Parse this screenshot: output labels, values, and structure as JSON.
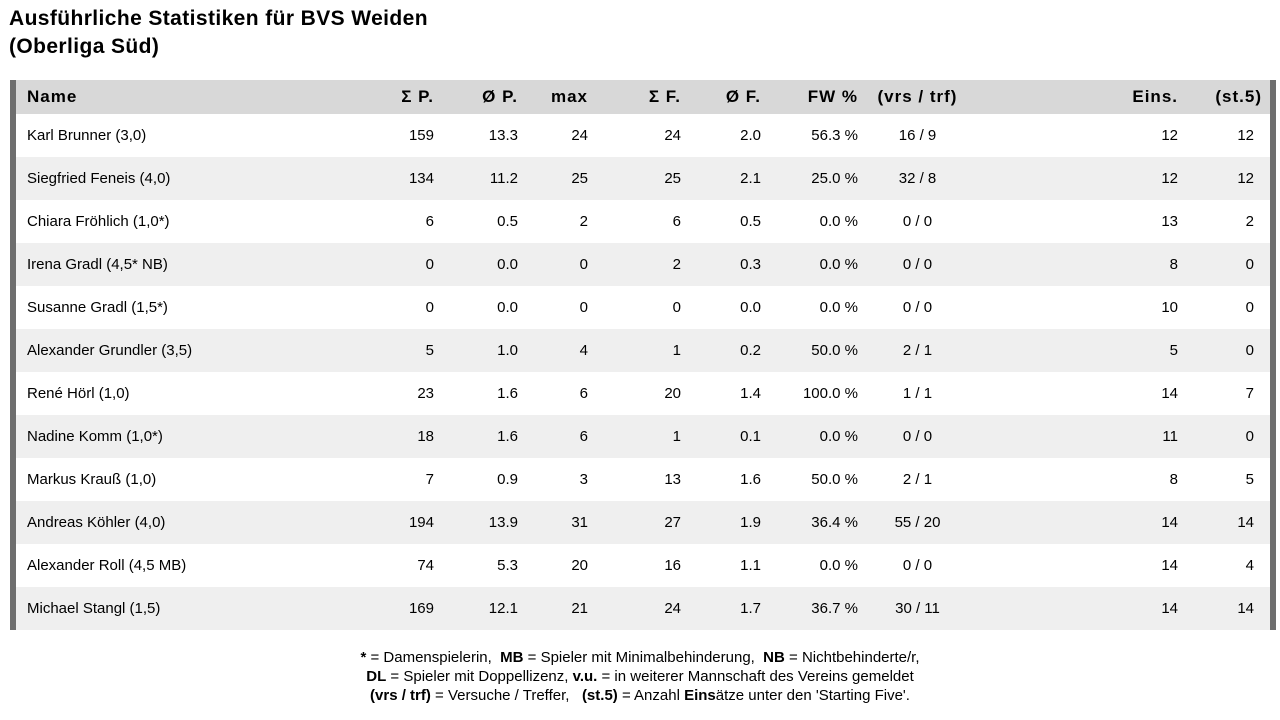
{
  "title": {
    "line1": "Ausführliche Statistiken für BVS Weiden",
    "line2": "(Oberliga Süd)"
  },
  "colors": {
    "header_bg": "#d8d8d8",
    "alt_row_bg": "#efefef",
    "side_bar": "#6e6e6e",
    "text": "#000000",
    "background": "#ffffff"
  },
  "table": {
    "columns": [
      {
        "key": "name",
        "label": "Name"
      },
      {
        "key": "sum_p",
        "label": "Σ P."
      },
      {
        "key": "avg_p",
        "label": "Ø P."
      },
      {
        "key": "max",
        "label": "max"
      },
      {
        "key": "sum_f",
        "label": "Σ F."
      },
      {
        "key": "avg_f",
        "label": "Ø F."
      },
      {
        "key": "fw_pct",
        "label": "FW %"
      },
      {
        "key": "vrs_trf",
        "label": "(vrs / trf)"
      },
      {
        "key": "eins",
        "label": "Eins."
      },
      {
        "key": "st5",
        "label": "(st.5)"
      }
    ],
    "rows": [
      {
        "name": "Karl Brunner (3,0)",
        "sum_p": "159",
        "avg_p": "13.3",
        "max": "24",
        "sum_f": "24",
        "avg_f": "2.0",
        "fw_pct": "56.3 %",
        "vrs_trf": "16 / 9",
        "eins": "12",
        "st5": "12"
      },
      {
        "name": "Siegfried Feneis (4,0)",
        "sum_p": "134",
        "avg_p": "11.2",
        "max": "25",
        "sum_f": "25",
        "avg_f": "2.1",
        "fw_pct": "25.0 %",
        "vrs_trf": "32 / 8",
        "eins": "12",
        "st5": "12"
      },
      {
        "name": "Chiara Fröhlich (1,0*)",
        "sum_p": "6",
        "avg_p": "0.5",
        "max": "2",
        "sum_f": "6",
        "avg_f": "0.5",
        "fw_pct": "0.0 %",
        "vrs_trf": "0 / 0",
        "eins": "13",
        "st5": "2"
      },
      {
        "name": "Irena Gradl (4,5* NB)",
        "sum_p": "0",
        "avg_p": "0.0",
        "max": "0",
        "sum_f": "2",
        "avg_f": "0.3",
        "fw_pct": "0.0 %",
        "vrs_trf": "0 / 0",
        "eins": "8",
        "st5": "0"
      },
      {
        "name": "Susanne Gradl (1,5*)",
        "sum_p": "0",
        "avg_p": "0.0",
        "max": "0",
        "sum_f": "0",
        "avg_f": "0.0",
        "fw_pct": "0.0 %",
        "vrs_trf": "0 / 0",
        "eins": "10",
        "st5": "0"
      },
      {
        "name": "Alexander Grundler (3,5)",
        "sum_p": "5",
        "avg_p": "1.0",
        "max": "4",
        "sum_f": "1",
        "avg_f": "0.2",
        "fw_pct": "50.0 %",
        "vrs_trf": "2 / 1",
        "eins": "5",
        "st5": "0"
      },
      {
        "name": "René Hörl (1,0)",
        "sum_p": "23",
        "avg_p": "1.6",
        "max": "6",
        "sum_f": "20",
        "avg_f": "1.4",
        "fw_pct": "100.0 %",
        "vrs_trf": "1 / 1",
        "eins": "14",
        "st5": "7"
      },
      {
        "name": "Nadine Komm (1,0*)",
        "sum_p": "18",
        "avg_p": "1.6",
        "max": "6",
        "sum_f": "1",
        "avg_f": "0.1",
        "fw_pct": "0.0 %",
        "vrs_trf": "0 / 0",
        "eins": "11",
        "st5": "0"
      },
      {
        "name": "Markus Krauß (1,0)",
        "sum_p": "7",
        "avg_p": "0.9",
        "max": "3",
        "sum_f": "13",
        "avg_f": "1.6",
        "fw_pct": "50.0 %",
        "vrs_trf": "2 / 1",
        "eins": "8",
        "st5": "5"
      },
      {
        "name": "Andreas Köhler (4,0)",
        "sum_p": "194",
        "avg_p": "13.9",
        "max": "31",
        "sum_f": "27",
        "avg_f": "1.9",
        "fw_pct": "36.4 %",
        "vrs_trf": "55 / 20",
        "eins": "14",
        "st5": "14"
      },
      {
        "name": "Alexander Roll (4,5 MB)",
        "sum_p": "74",
        "avg_p": "5.3",
        "max": "20",
        "sum_f": "16",
        "avg_f": "1.1",
        "fw_pct": "0.0 %",
        "vrs_trf": "0 / 0",
        "eins": "14",
        "st5": "4"
      },
      {
        "name": "Michael Stangl (1,5)",
        "sum_p": "169",
        "avg_p": "12.1",
        "max": "21",
        "sum_f": "24",
        "avg_f": "1.7",
        "fw_pct": "36.7 %",
        "vrs_trf": "30 / 11",
        "eins": "14",
        "st5": "14"
      }
    ]
  },
  "legend": {
    "lines": [
      [
        {
          "t": "*",
          "b": true
        },
        {
          "t": " = Damenspielerin,  ",
          "b": false
        },
        {
          "t": "MB",
          "b": true
        },
        {
          "t": " = Spieler mit Minimalbehinderung,  ",
          "b": false
        },
        {
          "t": "NB",
          "b": true
        },
        {
          "t": " = Nichtbehinderte/r,",
          "b": false
        }
      ],
      [
        {
          "t": "DL",
          "b": true
        },
        {
          "t": " = Spieler mit Doppellizenz, ",
          "b": false
        },
        {
          "t": "v.u.",
          "b": true
        },
        {
          "t": " = in weiterer Mannschaft des Vereins gemeldet",
          "b": false
        }
      ],
      [
        {
          "t": "(vrs / trf)",
          "b": true
        },
        {
          "t": " = Versuche / Treffer,   ",
          "b": false
        },
        {
          "t": "(st.5)",
          "b": true
        },
        {
          "t": " = Anzahl ",
          "b": false
        },
        {
          "t": "Eins",
          "b": true
        },
        {
          "t": "ätze unter den 'Starting Five'.",
          "b": false
        }
      ]
    ]
  }
}
